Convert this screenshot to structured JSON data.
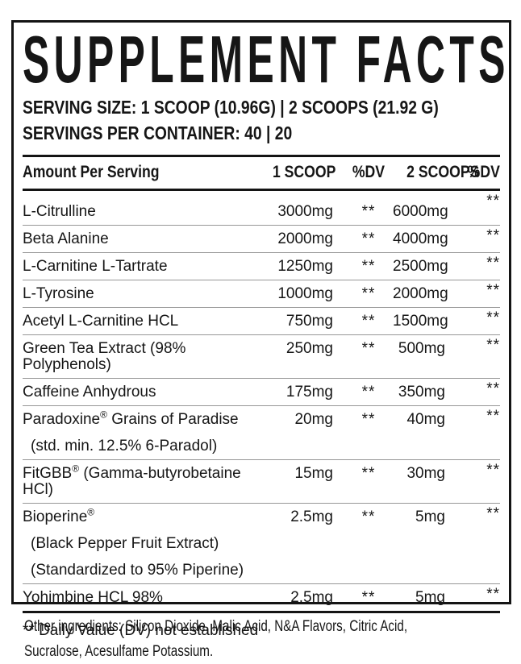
{
  "label": {
    "title": "SUPPLEMENT FACTS",
    "serving_size_line": "SERVING SIZE: 1 SCOOP (10.96G) | 2 SCOOPS (21.92 G)",
    "servings_line": "SERVINGS PER CONTAINER: 40 | 20",
    "footnote": "** Daily Value (DV) not established"
  },
  "table": {
    "columns": [
      "Amount Per Serving",
      "1 SCOOP",
      "%DV",
      "2 SCOOPS",
      "%DV"
    ],
    "rows": [
      {
        "name": "L-Citrulline",
        "reg": "",
        "name2": "",
        "scoop1": "3000mg",
        "dv1": "**",
        "scoop2": "6000mg",
        "dv2": "**",
        "sublines": []
      },
      {
        "name": "Beta Alanine",
        "reg": "",
        "name2": "",
        "scoop1": "2000mg",
        "dv1": "**",
        "scoop2": "4000mg",
        "dv2": "**",
        "sublines": []
      },
      {
        "name": "L-Carnitine L-Tartrate",
        "reg": "",
        "name2": "",
        "scoop1": "1250mg",
        "dv1": "**",
        "scoop2": "2500mg",
        "dv2": "**",
        "sublines": []
      },
      {
        "name": "L-Tyrosine",
        "reg": "",
        "name2": "",
        "scoop1": "1000mg",
        "dv1": "**",
        "scoop2": "2000mg",
        "dv2": "**",
        "sublines": []
      },
      {
        "name": "Acetyl L-Carnitine HCL",
        "reg": "",
        "name2": "",
        "scoop1": "750mg",
        "dv1": "**",
        "scoop2": "1500mg",
        "dv2": "**",
        "sublines": []
      },
      {
        "name": "Green Tea Extract (98% Polyphenols)",
        "reg": "",
        "name2": "",
        "scoop1": "250mg",
        "dv1": "**",
        "scoop2": "500mg",
        "dv2": "**",
        "sublines": []
      },
      {
        "name": "Caffeine Anhydrous",
        "reg": "",
        "name2": "",
        "scoop1": "175mg",
        "dv1": "**",
        "scoop2": "350mg",
        "dv2": "**",
        "sublines": []
      },
      {
        "name": "Paradoxine",
        "reg": "®",
        "name2": " Grains of Paradise",
        "scoop1": "20mg",
        "dv1": "**",
        "scoop2": "40mg",
        "dv2": "**",
        "sublines": [
          "(std. min. 12.5% 6-Paradol)"
        ]
      },
      {
        "name": "FitGBB",
        "reg": "®",
        "name2": " (Gamma-butyrobetaine HCl)",
        "scoop1": "15mg",
        "dv1": "**",
        "scoop2": "30mg",
        "dv2": "**",
        "sublines": []
      },
      {
        "name": "Bioperine",
        "reg": "®",
        "name2": "",
        "scoop1": "2.5mg",
        "dv1": "**",
        "scoop2": "5mg",
        "dv2": "**",
        "sublines": [
          "(Black Pepper Fruit Extract)",
          "(Standardized to 95% Piperine)"
        ]
      },
      {
        "name": "Yohimbine HCL 98%",
        "reg": "",
        "name2": "",
        "scoop1": "2.5mg",
        "dv1": "**",
        "scoop2": "5mg",
        "dv2": "**",
        "sublines": []
      }
    ]
  },
  "other_ingredients": {
    "lines": [
      "Other ingredients: Silicon Dioxide, Malic Acid, N&A Flavors, Citric Acid,",
      "Sucralose, Acesulfame Potassium."
    ]
  },
  "colors": {
    "text": "#161616",
    "border": "#141414",
    "separator": "#979797",
    "background": "#ffffff"
  }
}
